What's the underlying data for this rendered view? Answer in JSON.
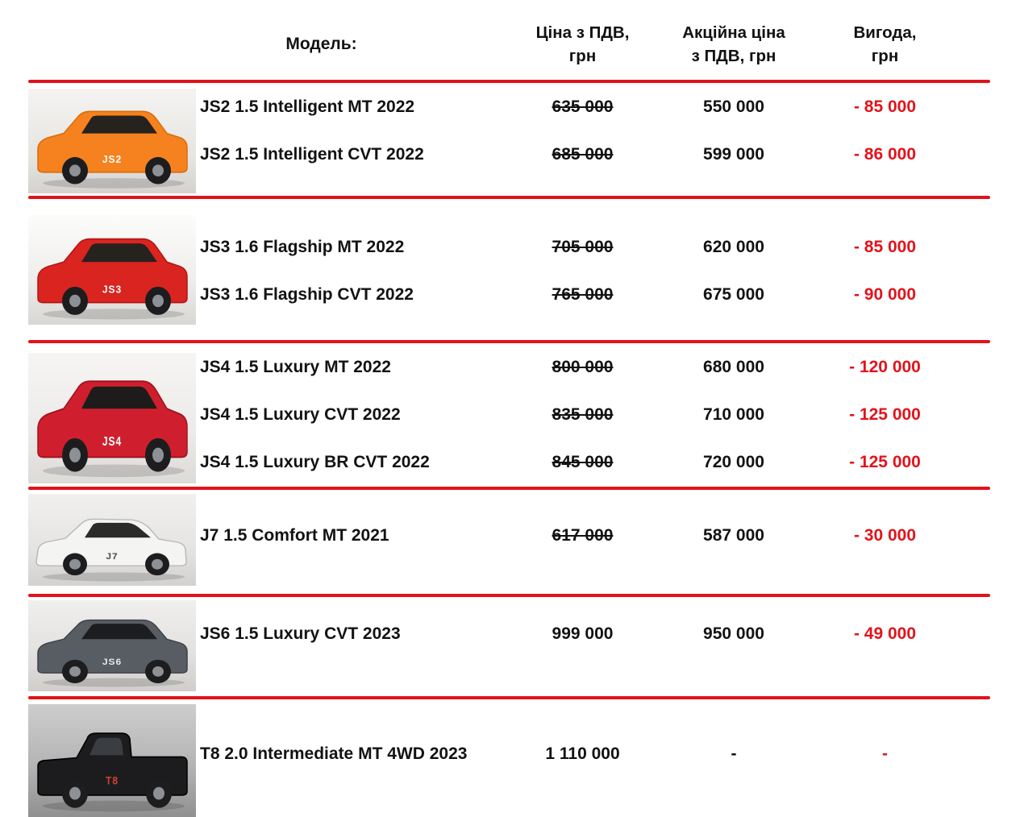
{
  "header": {
    "model_label": "Модель:",
    "price_label": "Ціна з ПДВ,\nгрн",
    "promo_label": "Акційна ціна\nз ПДВ, грн",
    "benefit_label": "Вигода,\nгрн"
  },
  "colors": {
    "accent_red": "#e2131b",
    "text_black": "#121212"
  },
  "sections": [
    {
      "model": "JS2",
      "image": {
        "name": "car-photo-js2",
        "type": "suv",
        "body_color": "#f5821f",
        "outline": "#d96c0c",
        "window_color": "#26221e",
        "label_color": "#ffffff",
        "bg": "linear-gradient(180deg,#f4f3f1 0%,#e6e5e2 65%,#d3d2cf 100%)"
      },
      "rows": [
        {
          "trim": "JS2 1.5 Intelligent MT 2022",
          "old_price": "635 000",
          "old_price_struck": true,
          "promo_price": "550 000",
          "benefit": "- 85 000"
        },
        {
          "trim": "JS2 1.5 Intelligent CVT 2022",
          "old_price": "685 000",
          "old_price_struck": true,
          "promo_price": "599 000",
          "benefit": "- 86 000"
        }
      ]
    },
    {
      "model": "JS3",
      "image": {
        "name": "car-photo-js3",
        "type": "suv",
        "body_color": "#da2420",
        "outline": "#b01713",
        "window_color": "#26221e",
        "label_color": "#ffffff",
        "bg": "linear-gradient(180deg,#fcfcfb 0%,#eeedeb 60%,#d8d7d4 100%)"
      },
      "rows": [
        {
          "trim": "JS3 1.6 Flagship MT 2022",
          "old_price": "705 000",
          "old_price_struck": true,
          "promo_price": "620 000",
          "benefit": "- 85 000"
        },
        {
          "trim": "JS3 1.6 Flagship CVT 2022",
          "old_price": "765 000",
          "old_price_struck": true,
          "promo_price": "675 000",
          "benefit": "- 90 000"
        }
      ]
    },
    {
      "model": "JS4",
      "image": {
        "name": "car-photo-js4",
        "type": "suv",
        "body_color": "#cf1f2e",
        "outline": "#a3131f",
        "window_color": "#1e1c1a",
        "label_color": "#ffffff",
        "bg": "linear-gradient(180deg,#f6f5f3 0%,#ecebe9 60%,#dcdbd8 100%)"
      },
      "rows": [
        {
          "trim": "JS4 1.5 Luxury MT 2022",
          "old_price": "800 000",
          "old_price_struck": true,
          "promo_price": "680 000",
          "benefit": "- 120 000"
        },
        {
          "trim": "JS4 1.5 Luxury CVT 2022",
          "old_price": "835 000",
          "old_price_struck": true,
          "promo_price": "710 000",
          "benefit": "- 125 000"
        },
        {
          "trim": "JS4 1.5 Luxury BR CVT 2022",
          "old_price": "845 000",
          "old_price_struck": true,
          "promo_price": "720 000",
          "benefit": "- 125 000"
        }
      ]
    },
    {
      "model": "J7",
      "image": {
        "name": "car-photo-j7",
        "type": "sedan",
        "body_color": "#f4f4f2",
        "outline": "#b9b9b7",
        "window_color": "#2b2b2b",
        "label_color": "#4a4a4a",
        "bg": "linear-gradient(180deg,#f1f0ee 0%,#e5e4e2 60%,#d2d1cf 100%)"
      },
      "rows": [
        {
          "trim": "J7 1.5 Comfort MT 2021",
          "old_price": "617 000",
          "old_price_struck": true,
          "promo_price": "587 000",
          "benefit": "- 30 000"
        }
      ]
    },
    {
      "model": "JS6",
      "image": {
        "name": "car-photo-js6",
        "type": "suv",
        "body_color": "#585d64",
        "outline": "#3c4046",
        "window_color": "#1b1d20",
        "label_color": "#e8e8e8",
        "bg": "linear-gradient(180deg,#f0efee 0%,#e2e1df 60%,#cfcecb 100%)"
      },
      "rows": [
        {
          "trim": "JS6 1.5 Luxury CVT 2023",
          "old_price": "999 000",
          "old_price_struck": false,
          "promo_price": "950 000",
          "benefit": "- 49 000"
        }
      ]
    },
    {
      "model": "T8",
      "image": {
        "name": "car-photo-t8",
        "type": "pickup",
        "body_color": "#1c1c1e",
        "outline": "#000000",
        "window_color": "#3a3d41",
        "label_color": "#d3402e",
        "bg": "linear-gradient(180deg,#cdcdcd 0%,#b4b4b4 55%,#909090 100%)"
      },
      "rows": [
        {
          "trim": "T8 2.0 Intermediate MT 4WD 2023",
          "old_price": "1 110 000",
          "old_price_struck": false,
          "promo_price": "-",
          "benefit": "-"
        }
      ]
    }
  ]
}
